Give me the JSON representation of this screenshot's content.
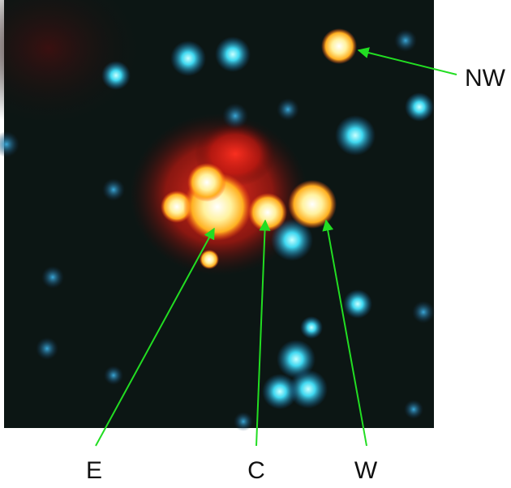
{
  "labels": {
    "nw": "NW",
    "e": "E",
    "c": "C",
    "w": "W"
  }
}
